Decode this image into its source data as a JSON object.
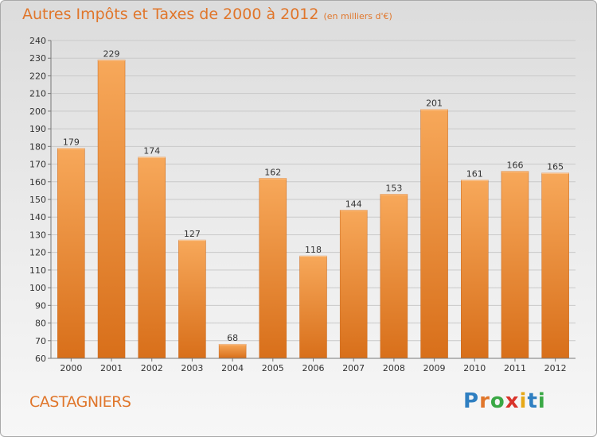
{
  "title": "Autres Impôts et Taxes de 2000 à 2012",
  "unit_note": "(en milliers d'€)",
  "commune": "CASTAGNIERS",
  "brand": {
    "text": "Proxiti",
    "colors": [
      "#2f7fc1",
      "#e0762b",
      "#3aa845",
      "#d9342b",
      "#e6a817",
      "#2f7fc1",
      "#3aa845"
    ]
  },
  "colors": {
    "bar_light": "#f7a85a",
    "bar_dark": "#d86f1a",
    "title": "#e0762b"
  },
  "chart_data": {
    "type": "bar",
    "categories": [
      "2000",
      "2001",
      "2002",
      "2003",
      "2004",
      "2005",
      "2006",
      "2007",
      "2008",
      "2009",
      "2010",
      "2011",
      "2012"
    ],
    "values": [
      179,
      229,
      174,
      127,
      68,
      162,
      118,
      144,
      153,
      201,
      161,
      166,
      165
    ],
    "data_labels": [
      "179",
      "229",
      "174",
      "127",
      "68",
      "162",
      "118",
      "144",
      "153",
      "201",
      "161",
      "166",
      "165"
    ],
    "title": "Autres Impôts et Taxes de 2000 à 2012",
    "xlabel": "",
    "ylabel": "",
    "ylim": [
      60,
      240
    ],
    "yticks": [
      60,
      70,
      80,
      90,
      100,
      110,
      120,
      130,
      140,
      150,
      160,
      170,
      180,
      190,
      200,
      210,
      220,
      230,
      240
    ],
    "grid": true,
    "legend": "none"
  }
}
